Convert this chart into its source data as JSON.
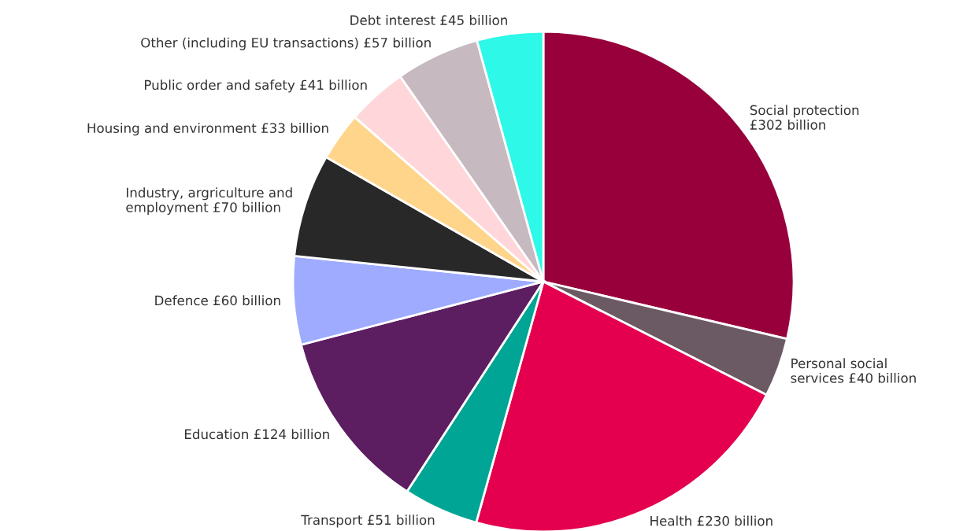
{
  "chart_data": {
    "type": "pie",
    "categories": [
      "Social protection\n£302 billion",
      "Personal social\nservices £40 billion",
      "Health £230 billion",
      "Transport £51 billion",
      "Education £124 billion",
      "Defence £60 billion",
      "Industry, argriculture and\nemployment £70 billion",
      "Housing and environment £33 billion",
      "Public order and safety £41 billion",
      "Other (including EU transactions) £57 billion",
      "Debt interest £45 billion"
    ],
    "values": [
      302,
      40,
      230,
      51,
      124,
      60,
      70,
      33,
      41,
      57,
      45
    ],
    "colors": [
      "#98003c",
      "#6b5a63",
      "#e4004f",
      "#00a595",
      "#5c1d61",
      "#9eabff",
      "#282828",
      "#ffd58c",
      "#ffd6da",
      "#c6b9c0",
      "#2ef8e8"
    ],
    "legend": false
  }
}
